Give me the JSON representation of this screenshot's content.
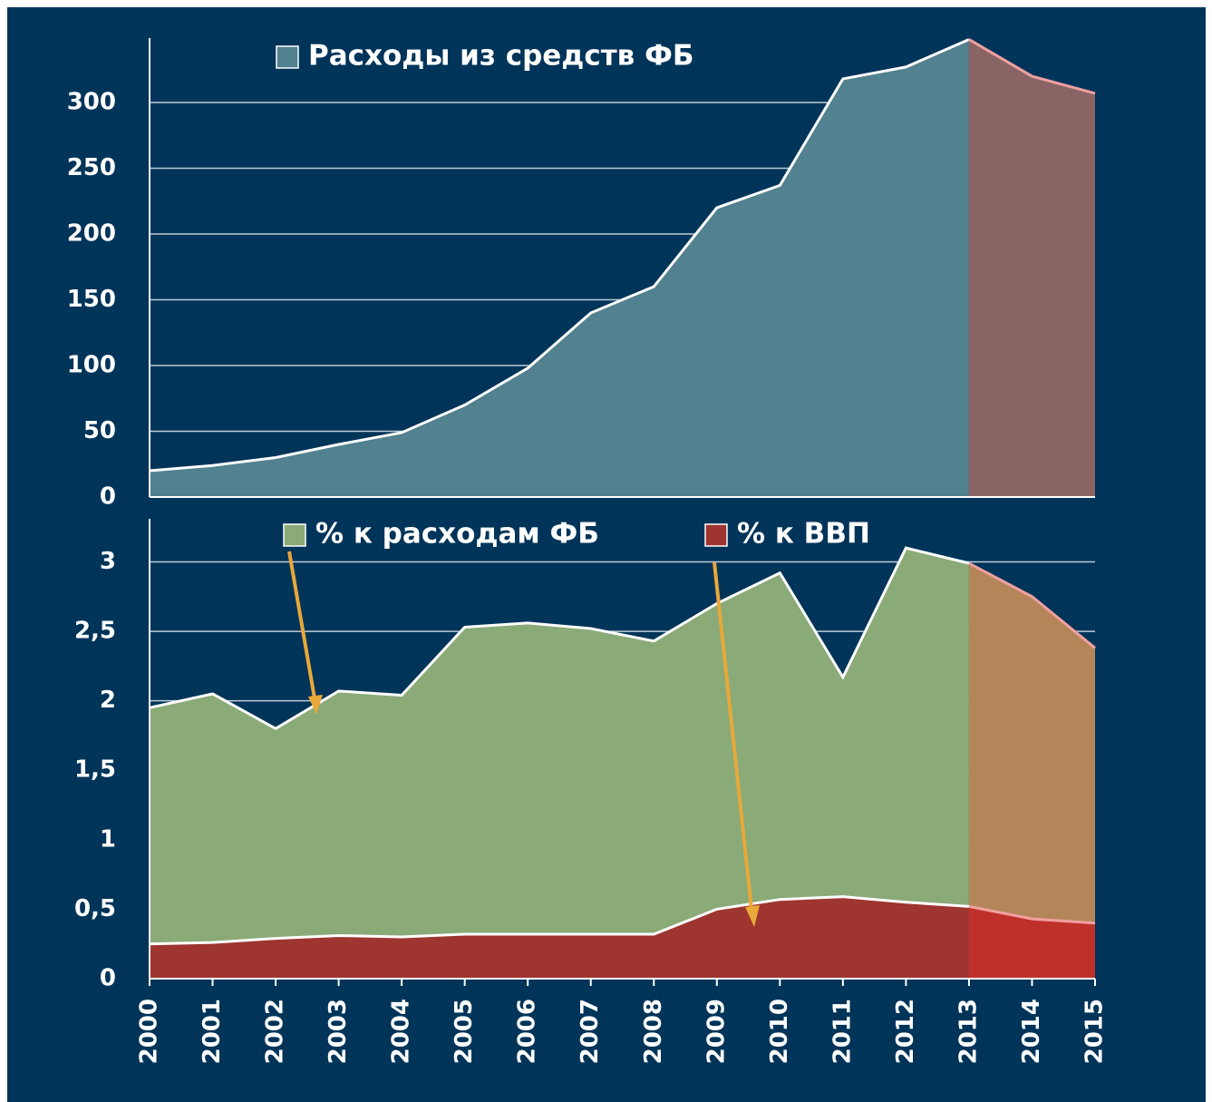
{
  "chart_data": [
    {
      "type": "area",
      "series": [
        {
          "name": "Расходы из средств ФБ",
          "color": "#52818f",
          "forecast_color": "#8a6464",
          "values": [
            20,
            24,
            30,
            40,
            49,
            70,
            98,
            140,
            160,
            220,
            237,
            318,
            327,
            348,
            320,
            307
          ]
        }
      ],
      "ylim": [
        0,
        349
      ],
      "yticks": [
        0,
        50,
        100,
        150,
        200,
        250,
        300
      ],
      "grid": true,
      "forecast_from": "2013"
    },
    {
      "type": "area",
      "categories": [
        "2000",
        "2001",
        "2002",
        "2003",
        "2004",
        "2005",
        "2006",
        "2007",
        "2008",
        "2009",
        "2010",
        "2011",
        "2012",
        "2013",
        "2014",
        "2015"
      ],
      "series": [
        {
          "name": "% к расходам ФБ",
          "color": "#8aaa78",
          "forecast_color": "#b5855a",
          "values": [
            1.95,
            2.05,
            1.8,
            2.07,
            2.04,
            2.53,
            2.56,
            2.52,
            2.43,
            2.7,
            2.92,
            2.17,
            3.1,
            2.99,
            2.75,
            2.38
          ]
        },
        {
          "name": "% к ВВП",
          "color": "#9e3530",
          "forecast_color": "#c0302a",
          "values": [
            0.25,
            0.26,
            0.29,
            0.31,
            0.3,
            0.32,
            0.32,
            0.32,
            0.32,
            0.5,
            0.57,
            0.59,
            0.55,
            0.52,
            0.43,
            0.4
          ]
        }
      ],
      "ylim": [
        0,
        3.31
      ],
      "yticks": [
        0,
        {
          "value": 0.5,
          "label": "0,5"
        },
        1,
        {
          "value": 1.5,
          "label": "1,5"
        },
        2,
        {
          "value": 2.5,
          "label": "2,5"
        },
        3
      ],
      "grid": true,
      "forecast_from": "2013"
    }
  ]
}
